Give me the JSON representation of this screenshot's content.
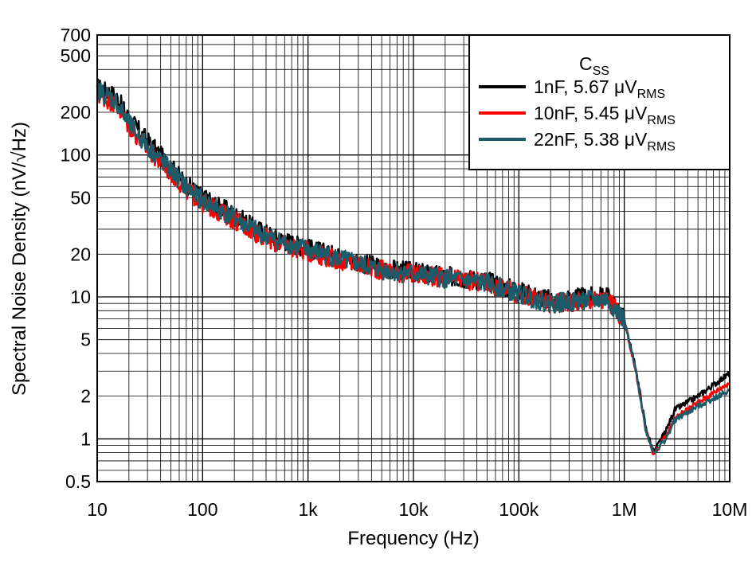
{
  "chart_data": {
    "type": "line",
    "title": "",
    "xlabel": "Frequency (Hz)",
    "ylabel": "Spectral Noise Density (nV/√Hz)",
    "x_scale": "log",
    "y_scale": "log",
    "xlim": [
      10,
      10000000
    ],
    "ylim": [
      0.5,
      700
    ],
    "grid": true,
    "x_ticks": [
      {
        "value": 10,
        "label": "10"
      },
      {
        "value": 100,
        "label": "100"
      },
      {
        "value": 1000,
        "label": "1k"
      },
      {
        "value": 10000,
        "label": "10k"
      },
      {
        "value": 100000,
        "label": "100k"
      },
      {
        "value": 1000000,
        "label": "1M"
      },
      {
        "value": 10000000,
        "label": "10M"
      }
    ],
    "y_ticks": [
      {
        "value": 0.5,
        "label": "0.5"
      },
      {
        "value": 1,
        "label": "1"
      },
      {
        "value": 2,
        "label": "2"
      },
      {
        "value": 5,
        "label": "5"
      },
      {
        "value": 10,
        "label": "10"
      },
      {
        "value": 20,
        "label": "20"
      },
      {
        "value": 50,
        "label": "50"
      },
      {
        "value": 100,
        "label": "100"
      },
      {
        "value": 200,
        "label": "200"
      },
      {
        "value": 500,
        "label": "500"
      },
      {
        "value": 700,
        "label": "700"
      }
    ],
    "legend": {
      "title": "C",
      "title_sub": "SS",
      "placement": "top-right"
    },
    "series": [
      {
        "name": "1nF, 5.67 μV",
        "name_sub": "RMS",
        "color": "#000000",
        "x": [
          10,
          15,
          20,
          30,
          50,
          70,
          100,
          200,
          300,
          500,
          1000,
          2000,
          5000,
          10000,
          20000,
          50000,
          100000,
          200000,
          500000,
          700000,
          1000000,
          1300000,
          1600000,
          1900000,
          2500000,
          3000000,
          5000000,
          10000000
        ],
        "y": [
          300,
          260,
          180,
          125,
          82,
          62,
          50,
          38,
          31,
          26,
          22,
          19,
          16,
          15,
          14,
          13,
          11,
          9.5,
          10,
          10,
          7,
          3,
          1.2,
          0.8,
          1.15,
          1.6,
          2.0,
          2.9
        ]
      },
      {
        "name": "10nF, 5.45 μV",
        "name_sub": "RMS",
        "color": "#ff0000",
        "x": [
          10,
          15,
          20,
          30,
          50,
          70,
          100,
          200,
          300,
          500,
          1000,
          2000,
          5000,
          10000,
          20000,
          50000,
          100000,
          200000,
          500000,
          700000,
          1000000,
          1300000,
          1600000,
          1900000,
          2500000,
          3000000,
          5000000,
          10000000
        ],
        "y": [
          270,
          230,
          160,
          110,
          75,
          57,
          46,
          35,
          29,
          24,
          21,
          18,
          15.5,
          14.5,
          13.5,
          12.5,
          10.5,
          9,
          9.5,
          9.5,
          6.8,
          2.9,
          1.15,
          0.78,
          1.05,
          1.4,
          1.8,
          2.5
        ]
      },
      {
        "name": "22nF, 5.38 μV",
        "name_sub": "RMS",
        "color": "#1b5b6a",
        "x": [
          10,
          15,
          20,
          30,
          50,
          70,
          100,
          200,
          300,
          500,
          1000,
          2000,
          5000,
          10000,
          20000,
          50000,
          100000,
          200000,
          500000,
          700000,
          1000000,
          1300000,
          1600000,
          1900000,
          2500000,
          3000000,
          5000000,
          10000000
        ],
        "y": [
          290,
          240,
          165,
          115,
          78,
          59,
          48,
          36,
          30,
          25,
          21.5,
          18.5,
          15.5,
          14.5,
          13.5,
          12.5,
          10.5,
          9,
          9.5,
          9.5,
          6.8,
          2.9,
          1.15,
          0.8,
          1.0,
          1.35,
          1.7,
          2.2
        ]
      }
    ]
  }
}
